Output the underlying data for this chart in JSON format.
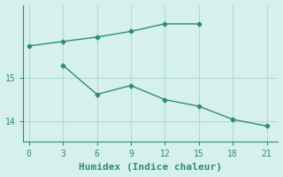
{
  "line1_x": [
    0,
    3,
    6,
    9,
    12,
    15
  ],
  "line1_y": [
    15.72,
    15.82,
    15.92,
    16.05,
    16.22,
    16.22
  ],
  "line2_x": [
    3,
    6,
    9,
    12,
    15,
    18,
    21
  ],
  "line2_y": [
    15.28,
    14.62,
    14.82,
    14.5,
    14.35,
    14.05,
    13.9
  ],
  "color": "#2e8b7a",
  "bg_color": "#d6f0ee",
  "xlabel": "Humidex (Indice chaleur)",
  "xlim": [
    -0.5,
    22
  ],
  "ylim": [
    13.55,
    16.65
  ],
  "xticks": [
    0,
    3,
    6,
    9,
    12,
    15,
    18,
    21
  ],
  "yticks": [
    14,
    15
  ],
  "grid_color": "#b0ddd8",
  "marker": "D",
  "marker_size": 2.5,
  "line_width": 1.0,
  "xlabel_fontsize": 8,
  "tick_fontsize": 7,
  "font_family": "monospace"
}
